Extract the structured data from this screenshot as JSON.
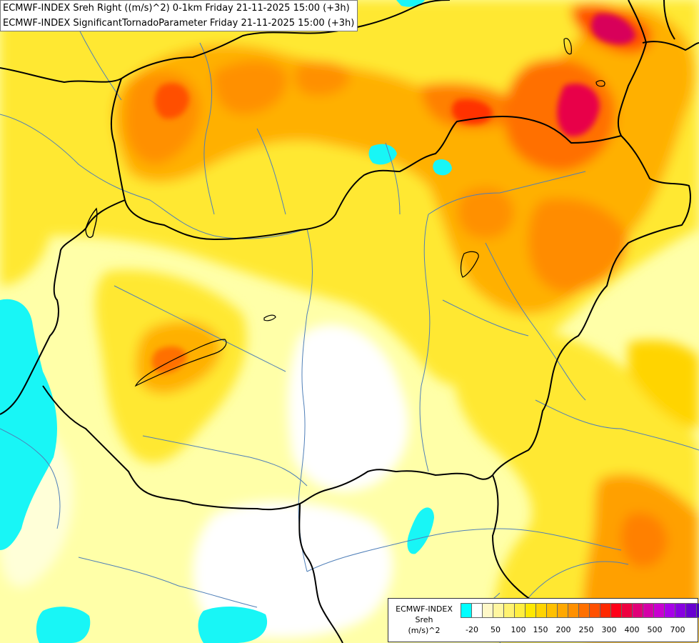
{
  "titles": {
    "line1": "ECMWF-INDEX Sreh Right ((m/s)^2) 0-1km Friday 21-11-2025 15:00 (+3h)",
    "line2": "ECMWF-INDEX SignificantTornadoParameter Friday 21-11-2025 15:00 (+3h)"
  },
  "legend": {
    "line1": "ECMWF-INDEX",
    "line2": "Sreh",
    "line3": "(m/s)^2",
    "swatch_colors": [
      "#00ffff",
      "#ffffff",
      "#fff8c8",
      "#fff6a0",
      "#fff270",
      "#ffee40",
      "#ffe800",
      "#ffd400",
      "#ffc000",
      "#ffa800",
      "#ff9000",
      "#ff7000",
      "#ff5000",
      "#ff2800",
      "#ff0018",
      "#ee0040",
      "#e00078",
      "#d400a8",
      "#c800d0",
      "#a800e8",
      "#8800e0",
      "#6800d0",
      "#4800b8",
      "#2400a0",
      "#000080"
    ],
    "ticks": [
      "-20",
      "50",
      "100",
      "150",
      "200",
      "250",
      "300",
      "400",
      "500",
      "700"
    ]
  }
}
